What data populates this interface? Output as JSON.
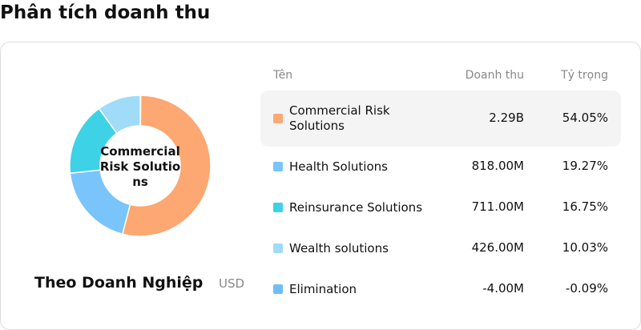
{
  "header": {
    "title": "Phân tích doanh thu"
  },
  "donut": {
    "center_label": "Commercial Risk Solutions",
    "subtitle": "Theo Doanh Nghiệp",
    "unit": "USD"
  },
  "table": {
    "columns": [
      "Tên",
      "Doanh thu",
      "Tỷ trọng"
    ],
    "selected_row": 0,
    "rows": [
      {
        "name": "Commercial Risk Solutions",
        "color": "#fda772",
        "revenue": "2.29B",
        "share": 54.05,
        "share_label": "54.05%"
      },
      {
        "name": "Health Solutions",
        "color": "#79c4fb",
        "revenue": "818.00M",
        "share": 19.27,
        "share_label": "19.27%"
      },
      {
        "name": "Reinsurance Solutions",
        "color": "#3dd2e6",
        "revenue": "711.00M",
        "share": 16.75,
        "share_label": "16.75%"
      },
      {
        "name": "Wealth solutions",
        "color": "#a0dcf8",
        "revenue": "426.00M",
        "share": 10.03,
        "share_label": "10.03%"
      },
      {
        "name": "Elimination",
        "color": "#6fbff7",
        "revenue": "-4.00M",
        "share": -0.09,
        "share_label": "-0.09%"
      }
    ]
  }
}
